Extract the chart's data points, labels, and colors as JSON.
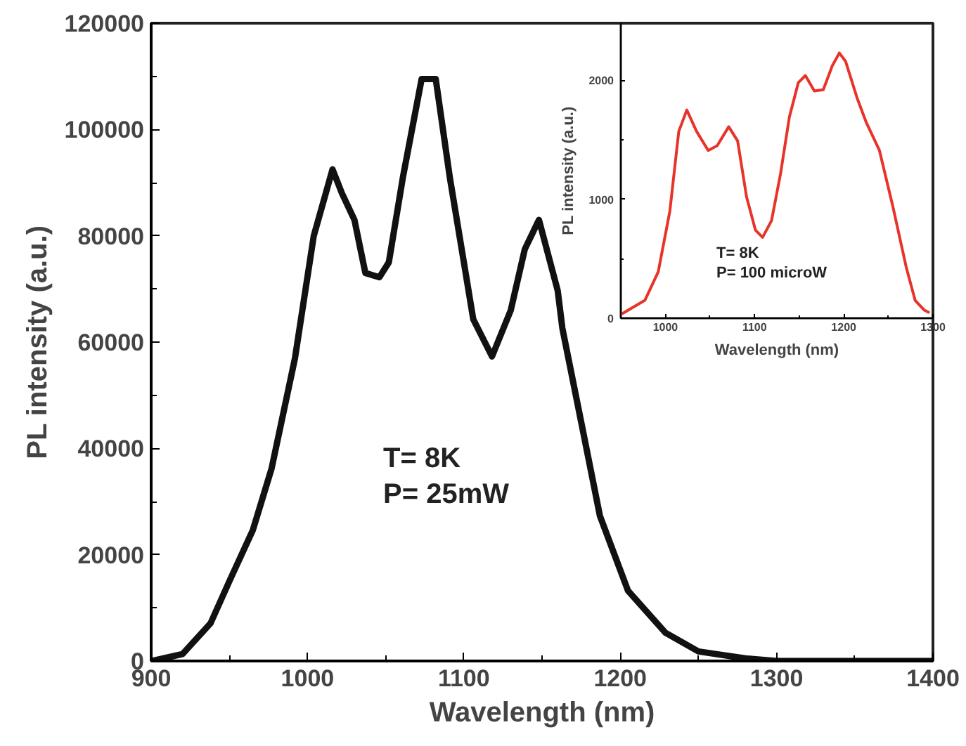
{
  "chart_data": [
    {
      "type": "line",
      "xlabel": "Wavelength (nm)",
      "ylabel": "PL intensity (a.u.)",
      "annotations": [
        "T= 8K\nP= 25mW"
      ],
      "xlim": [
        900,
        1400
      ],
      "ylim": [
        0,
        120000
      ],
      "xticks": [
        900,
        1000,
        1100,
        1200,
        1300,
        1400,
        {
          "value": 950,
          "label": null
        },
        {
          "value": 1050,
          "label": null
        },
        {
          "value": 1150,
          "label": null
        },
        {
          "value": 1250,
          "label": null
        },
        {
          "value": 1350,
          "label": null
        }
      ],
      "yticks": [
        0,
        20000,
        40000,
        60000,
        80000,
        100000,
        120000,
        {
          "value": 10000,
          "label": null
        },
        {
          "value": 30000,
          "label": null
        },
        {
          "value": 50000,
          "label": null
        },
        {
          "value": 70000,
          "label": null
        },
        {
          "value": 90000,
          "label": null
        },
        {
          "value": 110000,
          "label": null
        }
      ],
      "series": [
        {
          "color": "#111111",
          "x": [
            900,
            920,
            938,
            950,
            965,
            977,
            992,
            1004,
            1016,
            1022,
            1030,
            1037,
            1046,
            1052,
            1061,
            1073,
            1082,
            1091,
            1100,
            1106,
            1118,
            1130,
            1139,
            1148,
            1160,
            1163,
            1175,
            1187,
            1205,
            1229,
            1250,
            1280,
            1300,
            1400
          ],
          "values": [
            0,
            1300,
            7100,
            15000,
            24600,
            36200,
            57000,
            80000,
            92500,
            88000,
            83000,
            73000,
            72200,
            75000,
            91000,
            109500,
            109500,
            91000,
            75000,
            64300,
            57300,
            66000,
            77500,
            83000,
            69700,
            62600,
            45000,
            27300,
            13200,
            5300,
            1800,
            500,
            0,
            0
          ]
        }
      ]
    },
    {
      "type": "line",
      "xlabel": "Wavelength (nm)",
      "ylabel": "PL intensity (a.u.)",
      "annotations": [
        "T= 8K\nP= 100 microW"
      ],
      "xlim": [
        950,
        1300
      ],
      "ylim": [
        0,
        2480
      ],
      "xticks": [
        1000,
        1100,
        1200,
        1300,
        {
          "value": 1050,
          "label": null
        },
        {
          "value": 1150,
          "label": null
        },
        {
          "value": 1250,
          "label": null
        }
      ],
      "yticks": [
        0,
        1000,
        2000,
        {
          "value": 500,
          "label": null
        },
        {
          "value": 1500,
          "label": null
        }
      ],
      "series": [
        {
          "color": "#e8332a",
          "x": [
            952,
            977,
            992,
            1005,
            1015,
            1024,
            1035,
            1048,
            1058,
            1071,
            1081,
            1091,
            1101,
            1109,
            1119,
            1129,
            1139,
            1149,
            1157,
            1167,
            1177,
            1187,
            1195,
            1202,
            1215,
            1225,
            1240,
            1255,
            1270,
            1280,
            1290,
            1295
          ],
          "values": [
            40,
            150,
            390,
            900,
            1570,
            1750,
            1570,
            1410,
            1450,
            1610,
            1490,
            1020,
            740,
            680,
            820,
            1210,
            1690,
            1980,
            2040,
            1910,
            1920,
            2120,
            2230,
            2160,
            1850,
            1650,
            1410,
            940,
            430,
            150,
            70,
            50
          ]
        }
      ]
    }
  ]
}
